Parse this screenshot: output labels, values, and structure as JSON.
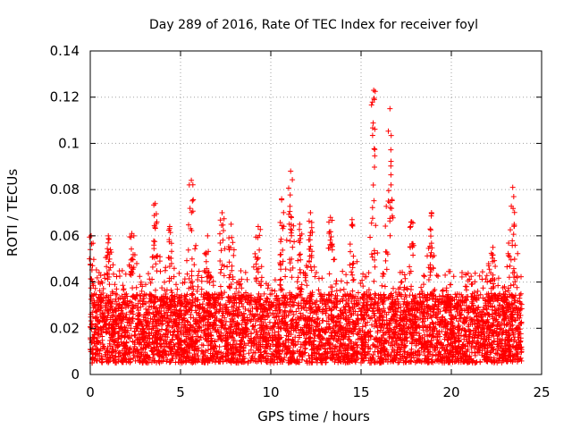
{
  "chart_data": {
    "type": "scatter",
    "title": "Day 289 of 2016, Rate Of TEC Index for receiver foyl",
    "xlabel": "GPS time / hours",
    "ylabel": "ROTI / TECUs",
    "xlim": [
      0,
      25
    ],
    "ylim": [
      0,
      0.14
    ],
    "grid": true,
    "marker": "+",
    "x_ticks": [
      0,
      5,
      10,
      15,
      20,
      25
    ],
    "x_tick_labels": [
      "0",
      "5",
      "10",
      "15",
      "20",
      "25"
    ],
    "y_ticks": [
      0,
      0.02,
      0.04,
      0.06,
      0.08,
      0.1,
      0.12,
      0.14
    ],
    "y_tick_labels": [
      "0",
      "0.02",
      "0.04",
      "0.06",
      "0.08",
      "0.1",
      "0.12",
      "0.14"
    ],
    "series": [
      {
        "name": "ROTI",
        "color": "#ff0000",
        "x_range": [
          0,
          23.9
        ],
        "typical_range": [
          0.005,
          0.035
        ],
        "peaks": [
          {
            "x": 0.05,
            "y": 0.06
          },
          {
            "x": 1.0,
            "y": 0.06
          },
          {
            "x": 2.3,
            "y": 0.061
          },
          {
            "x": 3.6,
            "y": 0.074
          },
          {
            "x": 4.4,
            "y": 0.064
          },
          {
            "x": 5.6,
            "y": 0.084
          },
          {
            "x": 6.5,
            "y": 0.06
          },
          {
            "x": 7.3,
            "y": 0.07
          },
          {
            "x": 7.8,
            "y": 0.065
          },
          {
            "x": 9.3,
            "y": 0.064
          },
          {
            "x": 10.6,
            "y": 0.076
          },
          {
            "x": 11.1,
            "y": 0.088
          },
          {
            "x": 11.6,
            "y": 0.065
          },
          {
            "x": 12.2,
            "y": 0.07
          },
          {
            "x": 13.3,
            "y": 0.068
          },
          {
            "x": 14.5,
            "y": 0.067
          },
          {
            "x": 15.7,
            "y": 0.123
          },
          {
            "x": 16.6,
            "y": 0.115
          },
          {
            "x": 17.8,
            "y": 0.066
          },
          {
            "x": 18.9,
            "y": 0.07
          },
          {
            "x": 22.3,
            "y": 0.055
          },
          {
            "x": 23.4,
            "y": 0.081
          }
        ]
      }
    ]
  }
}
